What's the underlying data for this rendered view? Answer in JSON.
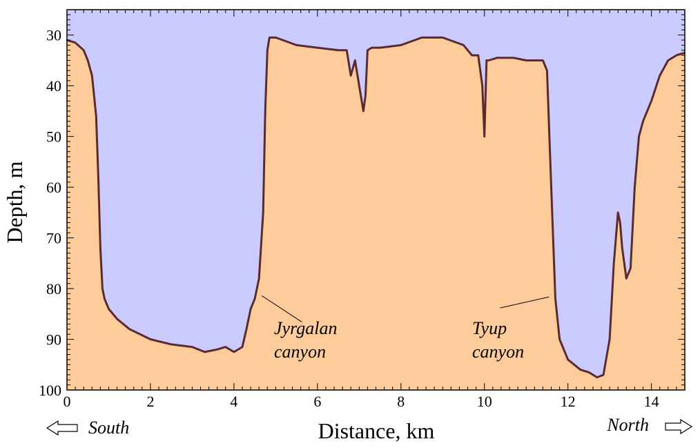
{
  "colors": {
    "water": "#cccbff",
    "ground": "#fecb9a",
    "profile_line": "#5b2a2a"
  },
  "chart_data": {
    "type": "area",
    "title": "",
    "xlabel": "Distance, km",
    "ylabel": "Depth, m",
    "xlim": [
      0,
      14.8
    ],
    "ylim": [
      25,
      100
    ],
    "y_inverted": true,
    "grid": false,
    "x_ticks": [
      0,
      2,
      4,
      6,
      8,
      10,
      12,
      14
    ],
    "y_ticks": [
      30,
      40,
      50,
      60,
      70,
      80,
      90,
      100
    ],
    "series": [
      {
        "x": [
          0,
          0.2,
          0.4,
          0.5,
          0.6,
          0.7,
          0.75,
          0.8,
          0.85,
          0.9,
          1.0,
          1.2,
          1.5,
          2.0,
          2.5,
          3.0,
          3.3,
          3.6,
          3.8,
          4.0,
          4.2,
          4.3,
          4.4,
          4.5,
          4.6,
          4.7,
          4.75,
          4.8,
          4.85,
          5.0,
          5.5,
          6.0,
          6.5,
          6.7,
          6.8,
          6.9,
          7.0,
          7.1,
          7.15,
          7.2,
          7.3,
          7.5,
          8.0,
          8.5,
          9.0,
          9.5,
          9.7,
          9.85,
          9.95,
          10.0,
          10.05,
          10.1,
          10.3,
          10.7,
          11.0,
          11.4,
          11.5,
          11.6,
          11.7,
          11.8,
          12.0,
          12.3,
          12.5,
          12.7,
          12.85,
          13.0,
          13.1,
          13.2,
          13.25,
          13.3,
          13.4,
          13.5,
          13.6,
          13.7,
          13.8,
          14.0,
          14.2,
          14.4,
          14.6,
          14.8
        ],
        "y": [
          31,
          31.5,
          33,
          35,
          38,
          46,
          58,
          72,
          80,
          82,
          84,
          86,
          88,
          90,
          91,
          91.5,
          92.5,
          92,
          91.5,
          92.5,
          91.5,
          88,
          84,
          82,
          78,
          65,
          45,
          33,
          30.5,
          30.5,
          32,
          32.5,
          33,
          33,
          38,
          35,
          40,
          45,
          42,
          33,
          32.5,
          32.5,
          32,
          30.5,
          30.5,
          32,
          34,
          34,
          40,
          50,
          35,
          35,
          34.5,
          34.5,
          35,
          35,
          37,
          60,
          82,
          90,
          94,
          96,
          96.5,
          97.5,
          97,
          90,
          75,
          65,
          67,
          72,
          78,
          76,
          60,
          50,
          47,
          43,
          38,
          35,
          34,
          33.5
        ]
      }
    ],
    "annotations": [
      {
        "line1": "Jyrgalan",
        "line2": "canyon",
        "x": 4.8,
        "y": 81
      },
      {
        "line1": "Tyup",
        "line2": "canyon",
        "x": 11.5,
        "y": 83
      }
    ],
    "direction_labels": {
      "left": "South",
      "right": "North"
    }
  }
}
